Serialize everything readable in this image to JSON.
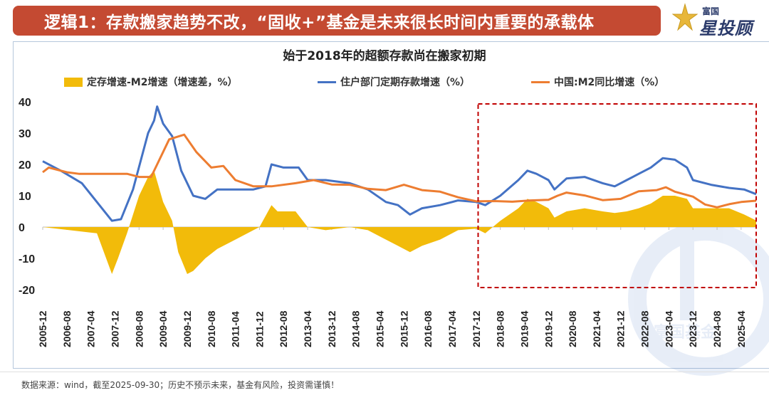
{
  "header": {
    "title": "逻辑1：存款搬家趋势不改，“固收+”基金是未来很长时间内重要的承载体"
  },
  "logo": {
    "top_text": "富国",
    "main_text": "星投顾"
  },
  "watermark": {
    "text": "富国基金"
  },
  "footer": {
    "source_text": "数据来源：wind，截至2025-09-30；历史不预示未来，基金有风险，投资需谨慎！"
  },
  "colors": {
    "header_bg": "#c44a32",
    "deposit_gap": "#f2bb0a",
    "household_deposit": "#4472c4",
    "m2": "#ed7d31",
    "highlight_box": "#c00000"
  },
  "chart_data": {
    "type": "line",
    "title": "始于2018年的超额存款尚在搬家初期",
    "ylim": [
      -20,
      40
    ],
    "yticks": [
      40,
      30,
      20,
      10,
      0,
      -10,
      -20
    ],
    "xticks": [
      "2005-12",
      "2006-08",
      "2007-04",
      "2007-12",
      "2008-08",
      "2009-04",
      "2009-12",
      "2010-08",
      "2011-04",
      "2011-12",
      "2012-08",
      "2013-04",
      "2013-12",
      "2014-08",
      "2015-04",
      "2015-12",
      "2016-08",
      "2017-04",
      "2017-12",
      "2018-08",
      "2019-04",
      "2019-12",
      "2020-08",
      "2021-04",
      "2021-12",
      "2022-08",
      "2023-04",
      "2023-12",
      "2024-08",
      "2025-04"
    ],
    "x_start": "2005-12",
    "x_end": "2025-09",
    "highlight_start": "2018-03",
    "series": [
      {
        "name": "住户部门定期存款增速（%）",
        "kind": "line",
        "color": "#4472c4",
        "points": [
          [
            "2005-12",
            21
          ],
          [
            "2006-06",
            18
          ],
          [
            "2007-01",
            14
          ],
          [
            "2007-06",
            8
          ],
          [
            "2007-11",
            2
          ],
          [
            "2008-02",
            2.5
          ],
          [
            "2008-06",
            12
          ],
          [
            "2008-11",
            30
          ],
          [
            "2009-01",
            34
          ],
          [
            "2009-02",
            38.5
          ],
          [
            "2009-04",
            33
          ],
          [
            "2009-07",
            29
          ],
          [
            "2009-10",
            18
          ],
          [
            "2010-02",
            10
          ],
          [
            "2010-06",
            9
          ],
          [
            "2010-10",
            12
          ],
          [
            "2011-04",
            12
          ],
          [
            "2011-10",
            12
          ],
          [
            "2012-02",
            13
          ],
          [
            "2012-04",
            20
          ],
          [
            "2012-08",
            19
          ],
          [
            "2013-01",
            19
          ],
          [
            "2013-04",
            15
          ],
          [
            "2013-10",
            15
          ],
          [
            "2014-06",
            14
          ],
          [
            "2014-12",
            12
          ],
          [
            "2015-06",
            8
          ],
          [
            "2015-10",
            7
          ],
          [
            "2016-02",
            4
          ],
          [
            "2016-06",
            6
          ],
          [
            "2016-12",
            7
          ],
          [
            "2017-06",
            8.5
          ],
          [
            "2017-12",
            8
          ],
          [
            "2018-03",
            7
          ],
          [
            "2018-08",
            10
          ],
          [
            "2019-02",
            15
          ],
          [
            "2019-05",
            18
          ],
          [
            "2019-08",
            17
          ],
          [
            "2019-12",
            15
          ],
          [
            "2020-02",
            12
          ],
          [
            "2020-06",
            15.5
          ],
          [
            "2020-12",
            16
          ],
          [
            "2021-06",
            14
          ],
          [
            "2021-10",
            13
          ],
          [
            "2022-02",
            15
          ],
          [
            "2022-06",
            17
          ],
          [
            "2022-10",
            19
          ],
          [
            "2023-02",
            22
          ],
          [
            "2023-06",
            21.5
          ],
          [
            "2023-10",
            19
          ],
          [
            "2023-12",
            15
          ],
          [
            "2024-06",
            13.5
          ],
          [
            "2024-12",
            12.5
          ],
          [
            "2025-05",
            12
          ],
          [
            "2025-09",
            10.5
          ]
        ]
      },
      {
        "name": "中国:M2同比增速（%）",
        "kind": "line",
        "color": "#ed7d31",
        "points": [
          [
            "2005-12",
            17.5
          ],
          [
            "2006-02",
            19
          ],
          [
            "2006-08",
            17.5
          ],
          [
            "2006-12",
            17
          ],
          [
            "2007-04",
            17
          ],
          [
            "2007-12",
            17
          ],
          [
            "2008-04",
            17
          ],
          [
            "2008-08",
            16
          ],
          [
            "2008-12",
            16
          ],
          [
            "2009-02",
            20
          ],
          [
            "2009-06",
            28
          ],
          [
            "2009-11",
            29.5
          ],
          [
            "2010-03",
            24
          ],
          [
            "2010-08",
            19
          ],
          [
            "2010-12",
            19.5
          ],
          [
            "2011-04",
            15
          ],
          [
            "2011-10",
            13
          ],
          [
            "2012-04",
            13
          ],
          [
            "2012-12",
            14
          ],
          [
            "2013-06",
            15
          ],
          [
            "2013-12",
            13.6
          ],
          [
            "2014-06",
            13.5
          ],
          [
            "2014-12",
            12.2
          ],
          [
            "2015-06",
            11.8
          ],
          [
            "2015-12",
            13.5
          ],
          [
            "2016-06",
            11.8
          ],
          [
            "2016-12",
            11.3
          ],
          [
            "2017-06",
            9.5
          ],
          [
            "2017-12",
            8.2
          ],
          [
            "2018-06",
            8.3
          ],
          [
            "2018-12",
            8.1
          ],
          [
            "2019-06",
            8.5
          ],
          [
            "2019-12",
            8.7
          ],
          [
            "2020-03",
            10
          ],
          [
            "2020-06",
            11
          ],
          [
            "2020-12",
            10.1
          ],
          [
            "2021-06",
            8.6
          ],
          [
            "2021-12",
            9
          ],
          [
            "2022-06",
            11.4
          ],
          [
            "2022-12",
            11.8
          ],
          [
            "2023-03",
            12.7
          ],
          [
            "2023-06",
            11.3
          ],
          [
            "2023-12",
            9.7
          ],
          [
            "2024-04",
            7.2
          ],
          [
            "2024-08",
            6.3
          ],
          [
            "2024-12",
            7.3
          ],
          [
            "2025-04",
            8
          ],
          [
            "2025-09",
            8.4
          ]
        ]
      },
      {
        "name": "定存增速-M2增速（增速差，%）",
        "kind": "area",
        "color": "#f2bb0a",
        "points": [
          [
            "2005-12",
            0
          ],
          [
            "2007-06",
            -2
          ],
          [
            "2007-11",
            -15
          ],
          [
            "2008-01",
            -10
          ],
          [
            "2008-04",
            -2
          ],
          [
            "2008-08",
            10
          ],
          [
            "2008-11",
            16
          ],
          [
            "2009-01",
            18
          ],
          [
            "2009-04",
            8
          ],
          [
            "2009-07",
            2
          ],
          [
            "2009-09",
            -8
          ],
          [
            "2009-12",
            -15
          ],
          [
            "2010-02",
            -14
          ],
          [
            "2010-06",
            -10
          ],
          [
            "2010-10",
            -7
          ],
          [
            "2011-04",
            -4
          ],
          [
            "2011-10",
            -1
          ],
          [
            "2011-12",
            0
          ],
          [
            "2012-04",
            7
          ],
          [
            "2012-06",
            5
          ],
          [
            "2012-12",
            5
          ],
          [
            "2013-04",
            0
          ],
          [
            "2013-10",
            -1
          ],
          [
            "2014-06",
            0
          ],
          [
            "2014-12",
            -1
          ],
          [
            "2015-04",
            -3
          ],
          [
            "2015-10",
            -6
          ],
          [
            "2016-02",
            -8
          ],
          [
            "2016-06",
            -6
          ],
          [
            "2016-12",
            -4
          ],
          [
            "2017-06",
            -1
          ],
          [
            "2017-12",
            -0.5
          ],
          [
            "2018-03",
            -2
          ],
          [
            "2018-08",
            2
          ],
          [
            "2019-02",
            6
          ],
          [
            "2019-05",
            9
          ],
          [
            "2019-08",
            8
          ],
          [
            "2019-12",
            6
          ],
          [
            "2020-02",
            3
          ],
          [
            "2020-06",
            5
          ],
          [
            "2020-12",
            6
          ],
          [
            "2021-06",
            5
          ],
          [
            "2021-10",
            4.5
          ],
          [
            "2022-02",
            5
          ],
          [
            "2022-06",
            6
          ],
          [
            "2022-10",
            7.5
          ],
          [
            "2023-02",
            10
          ],
          [
            "2023-06",
            10
          ],
          [
            "2023-10",
            9
          ],
          [
            "2023-12",
            6
          ],
          [
            "2024-06",
            6
          ],
          [
            "2024-12",
            6
          ],
          [
            "2025-05",
            4
          ],
          [
            "2025-09",
            2.1
          ]
        ]
      }
    ]
  }
}
